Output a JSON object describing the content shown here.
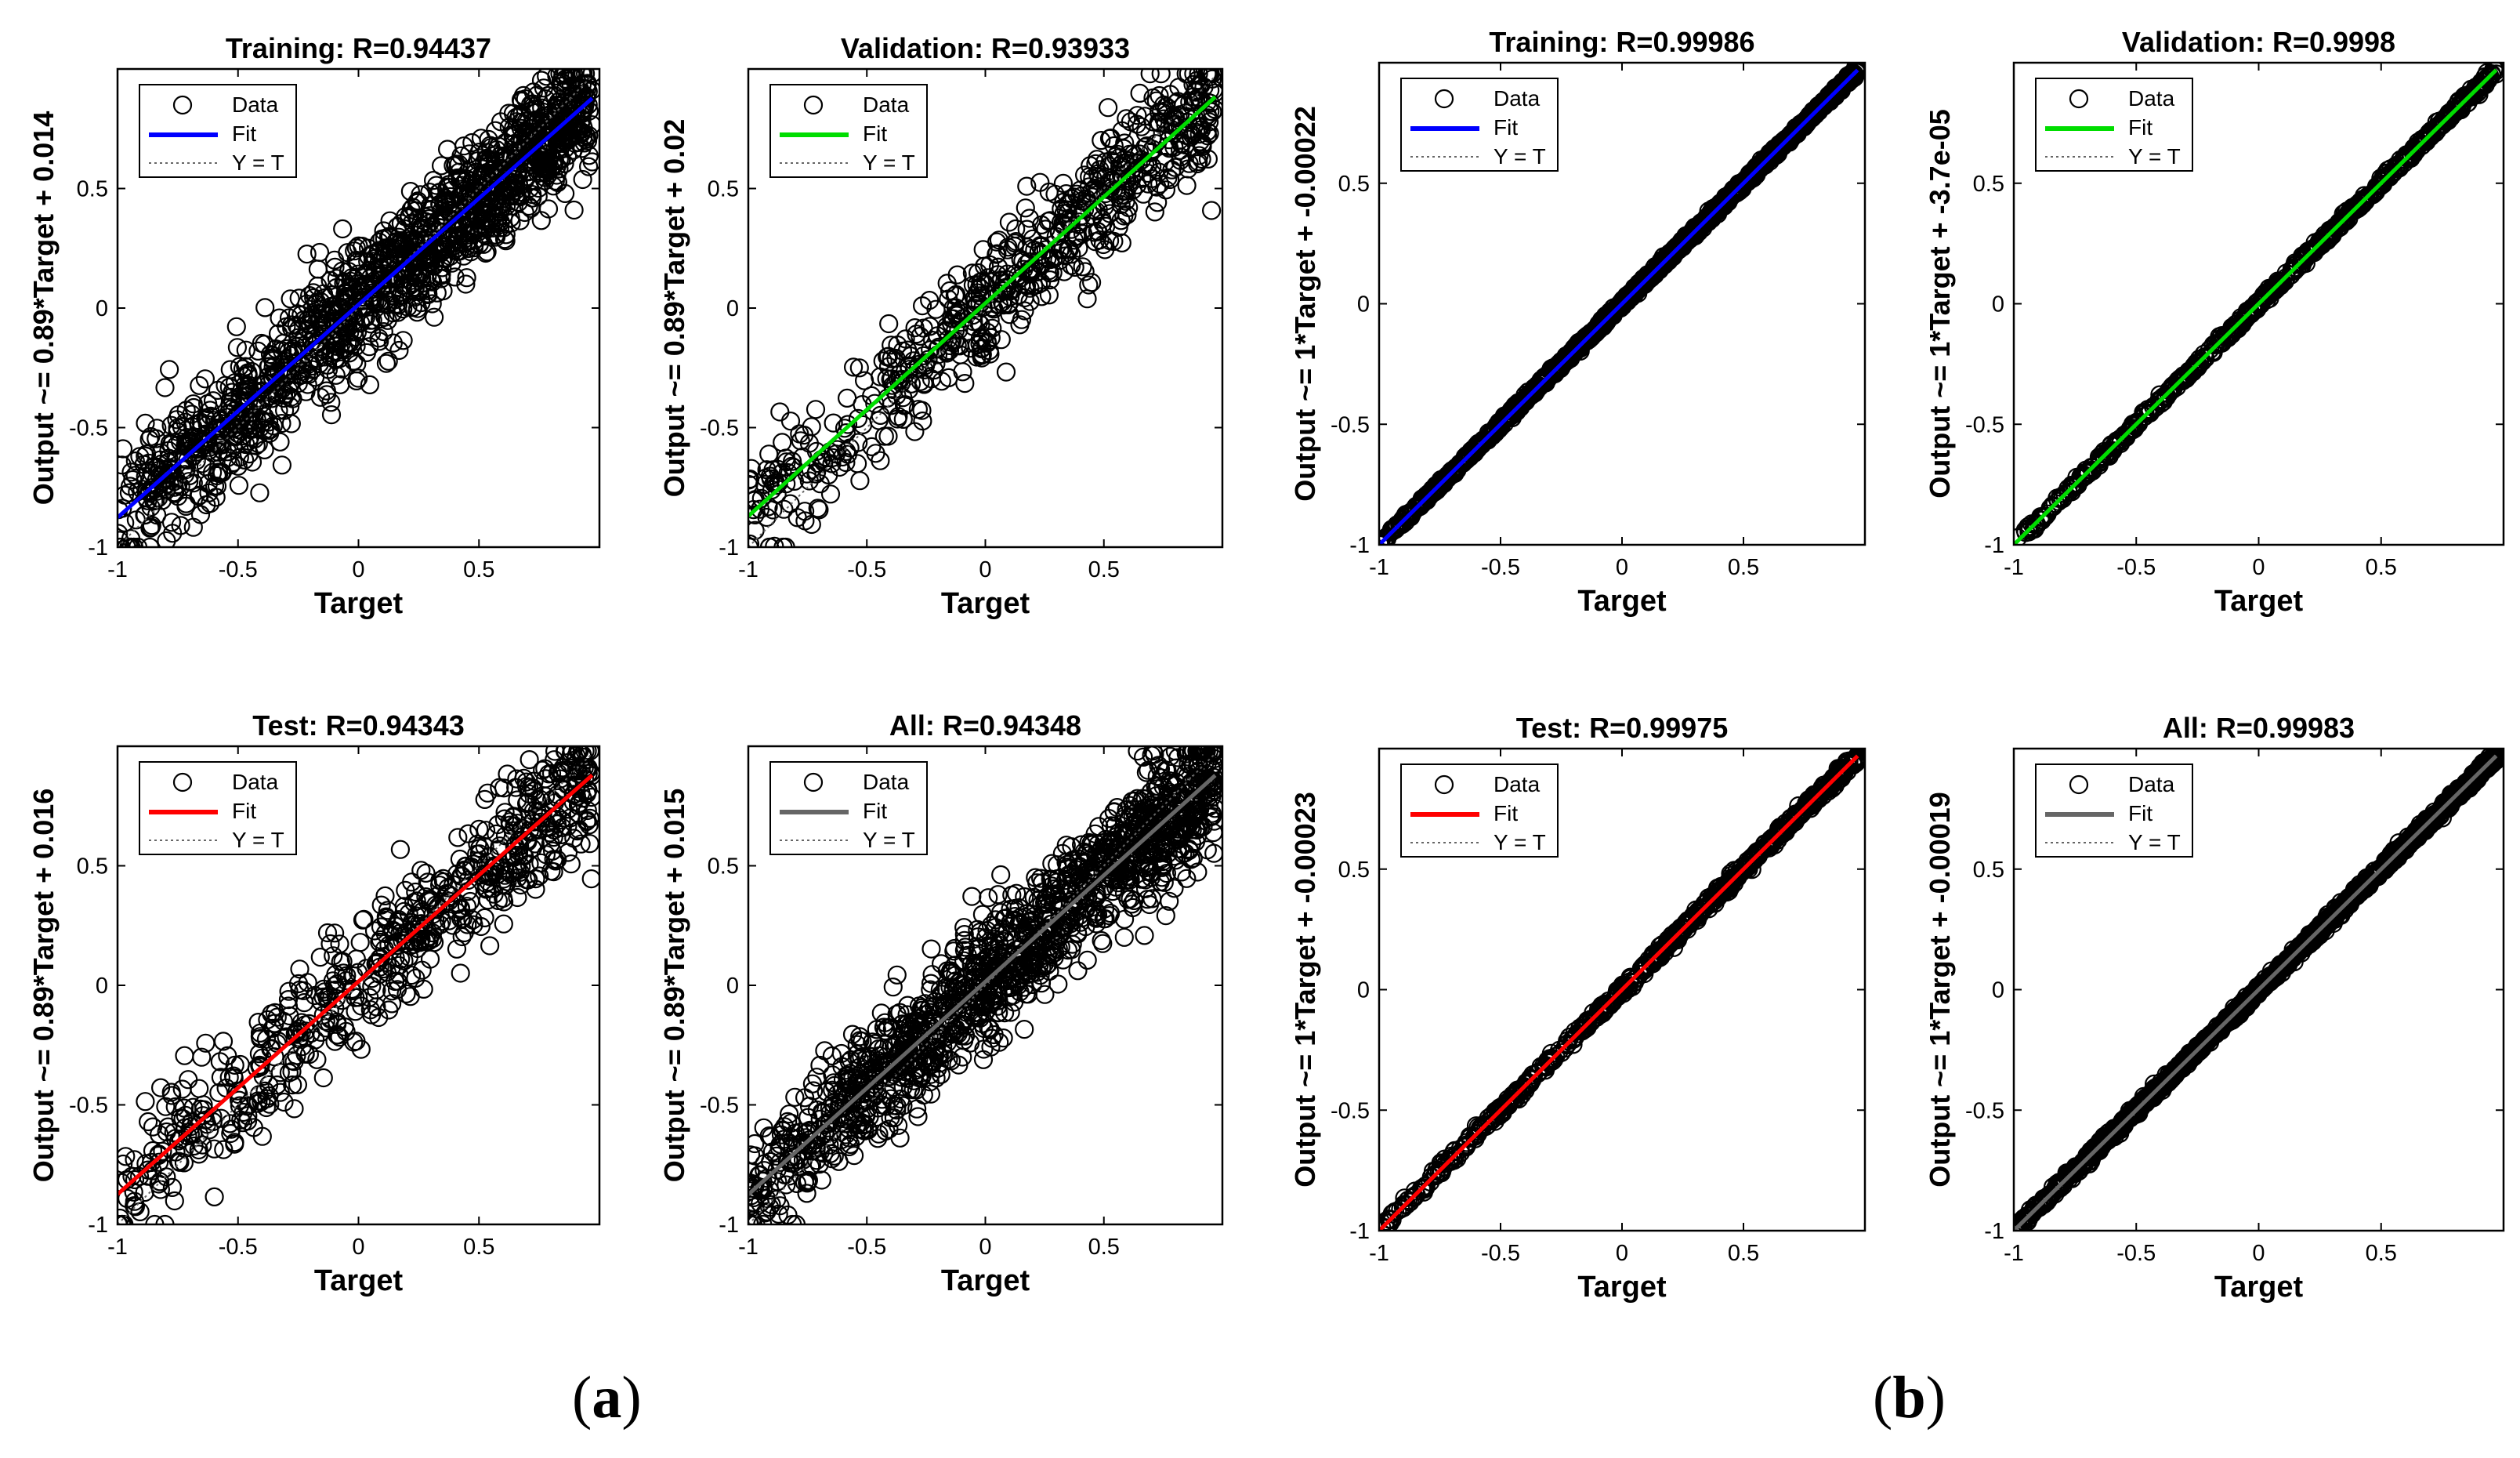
{
  "figure": {
    "panel_labels": [
      {
        "open": "(",
        "letter": "a",
        "close": ")"
      },
      {
        "open": "(",
        "letter": "b",
        "close": ")"
      }
    ]
  },
  "chart_data": [
    {
      "type": "scatter",
      "title": "Training: R=0.94437",
      "xlabel": "Target",
      "ylabel": "Output ~= 0.89*Target + 0.014",
      "xlim": [
        -1,
        1
      ],
      "ylim": [
        -1,
        1
      ],
      "xticks": [
        -1,
        -0.5,
        0,
        0.5
      ],
      "yticks": [
        -1,
        -0.5,
        0,
        0.5
      ],
      "fit": {
        "slope": 0.89,
        "intercept": 0.014,
        "color": "#0000ff"
      },
      "noise": 0.13,
      "density": "high",
      "legend": [
        "Data",
        "Fit",
        "Y = T"
      ],
      "legend_position": "top-left"
    },
    {
      "type": "scatter",
      "title": "Validation: R=0.93933",
      "xlabel": "Target",
      "ylabel": "Output ~= 0.89*Target + 0.02",
      "xlim": [
        -1,
        1
      ],
      "ylim": [
        -1,
        1
      ],
      "xticks": [
        -1,
        -0.5,
        0,
        0.5
      ],
      "yticks": [
        -1,
        -0.5,
        0,
        0.5
      ],
      "fit": {
        "slope": 0.89,
        "intercept": 0.02,
        "color": "#00dd00"
      },
      "noise": 0.13,
      "density": "medium",
      "legend": [
        "Data",
        "Fit",
        "Y = T"
      ],
      "legend_position": "top-left"
    },
    {
      "type": "scatter",
      "title": "Training: R=0.99986",
      "xlabel": "Target",
      "ylabel": "Output ~= 1*Target + -0.00022",
      "xlim": [
        -1,
        1
      ],
      "ylim": [
        -1,
        1
      ],
      "xticks": [
        -1,
        -0.5,
        0,
        0.5
      ],
      "yticks": [
        -1,
        -0.5,
        0,
        0.5
      ],
      "fit": {
        "slope": 1,
        "intercept": -0.00022,
        "color": "#0000ff"
      },
      "noise": 0.008,
      "density": "high",
      "legend": [
        "Data",
        "Fit",
        "Y = T"
      ],
      "legend_position": "top-left"
    },
    {
      "type": "scatter",
      "title": "Validation: R=0.9998",
      "xlabel": "Target",
      "ylabel": "Output ~= 1*Target + -3.7e-05",
      "xlim": [
        -1,
        1
      ],
      "ylim": [
        -1,
        1
      ],
      "xticks": [
        -1,
        -0.5,
        0,
        0.5
      ],
      "yticks": [
        -1,
        -0.5,
        0,
        0.5
      ],
      "fit": {
        "slope": 1,
        "intercept": -3.7e-05,
        "color": "#00dd00"
      },
      "noise": 0.01,
      "density": "medium",
      "legend": [
        "Data",
        "Fit",
        "Y = T"
      ],
      "legend_position": "top-left"
    },
    {
      "type": "scatter",
      "title": "Test: R=0.94343",
      "xlabel": "Target",
      "ylabel": "Output ~= 0.89*Target + 0.016",
      "xlim": [
        -1,
        1
      ],
      "ylim": [
        -1,
        1
      ],
      "xticks": [
        -1,
        -0.5,
        0,
        0.5
      ],
      "yticks": [
        -1,
        -0.5,
        0,
        0.5
      ],
      "fit": {
        "slope": 0.89,
        "intercept": 0.016,
        "color": "#ff0000"
      },
      "noise": 0.13,
      "density": "medium",
      "legend": [
        "Data",
        "Fit",
        "Y = T"
      ],
      "legend_position": "top-left"
    },
    {
      "type": "scatter",
      "title": "All: R=0.94348",
      "xlabel": "Target",
      "ylabel": "Output ~= 0.89*Target + 0.015",
      "xlim": [
        -1,
        1
      ],
      "ylim": [
        -1,
        1
      ],
      "xticks": [
        -1,
        -0.5,
        0,
        0.5
      ],
      "yticks": [
        -1,
        -0.5,
        0,
        0.5
      ],
      "fit": {
        "slope": 0.89,
        "intercept": 0.015,
        "color": "#666666"
      },
      "noise": 0.13,
      "density": "high",
      "legend": [
        "Data",
        "Fit",
        "Y = T"
      ],
      "legend_position": "top-left"
    },
    {
      "type": "scatter",
      "title": "Test: R=0.99975",
      "xlabel": "Target",
      "ylabel": "Output ~= 1*Target + -0.00023",
      "xlim": [
        -1,
        1
      ],
      "ylim": [
        -1,
        1
      ],
      "xticks": [
        -1,
        -0.5,
        0,
        0.5
      ],
      "yticks": [
        -1,
        -0.5,
        0,
        0.5
      ],
      "fit": {
        "slope": 1,
        "intercept": -0.00023,
        "color": "#ff0000"
      },
      "noise": 0.012,
      "density": "medium",
      "legend": [
        "Data",
        "Fit",
        "Y = T"
      ],
      "legend_position": "top-left"
    },
    {
      "type": "scatter",
      "title": "All: R=0.99983",
      "xlabel": "Target",
      "ylabel": "Output ~= 1*Target + -0.00019",
      "xlim": [
        -1,
        1
      ],
      "ylim": [
        -1,
        1
      ],
      "xticks": [
        -1,
        -0.5,
        0,
        0.5
      ],
      "yticks": [
        -1,
        -0.5,
        0,
        0.5
      ],
      "fit": {
        "slope": 1,
        "intercept": -0.00019,
        "color": "#666666"
      },
      "noise": 0.01,
      "density": "high",
      "legend": [
        "Data",
        "Fit",
        "Y = T"
      ],
      "legend_position": "top-left"
    }
  ]
}
